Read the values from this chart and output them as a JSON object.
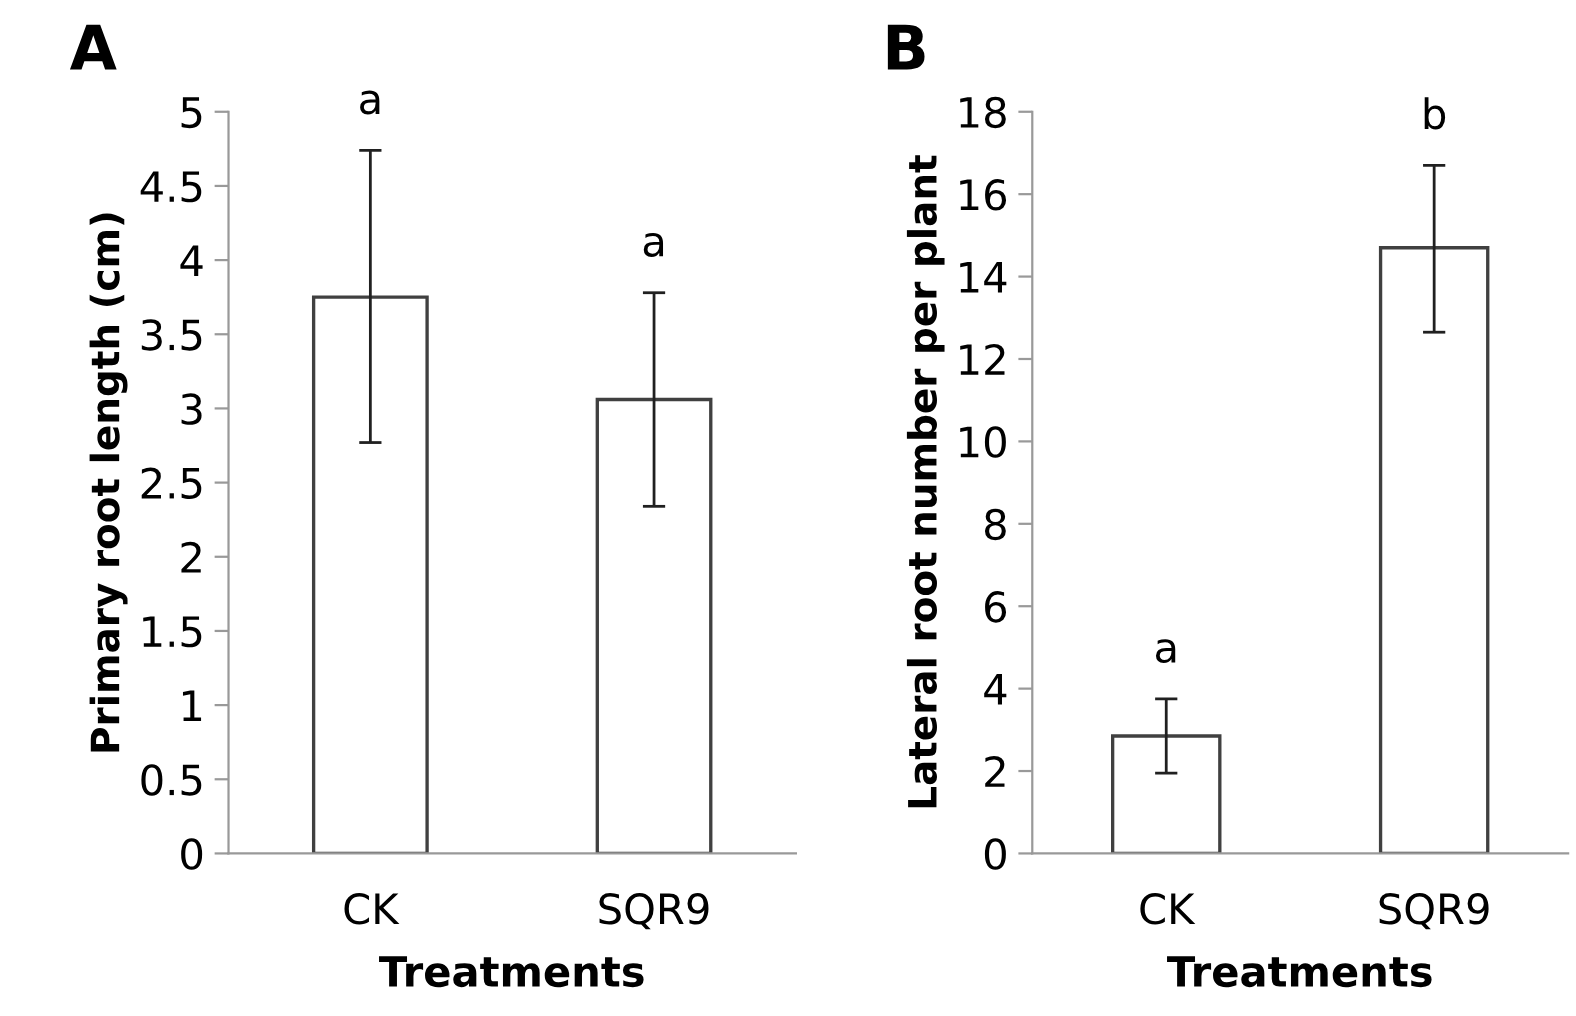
{
  "chart_data": [
    {
      "type": "bar",
      "title": "A",
      "xlabel": "Treatments",
      "ylabel": "Primary root length (cm)",
      "categories": [
        "CK",
        "SQR9"
      ],
      "values": [
        3.75,
        3.06
      ],
      "errors": [
        [
          2.77,
          4.74
        ],
        [
          2.34,
          3.78
        ]
      ],
      "color": "#ffffff",
      "ylim": [
        0,
        5
      ],
      "yticks": [
        0,
        0.5,
        1,
        1.5,
        2,
        2.5,
        3,
        3.5,
        4,
        4.5,
        5
      ],
      "grid": false,
      "legend": false,
      "annotations": [
        {
          "text": "a",
          "x": "CK",
          "y": 4.74
        },
        {
          "text": "a",
          "x": "SQR9",
          "y": 3.78
        }
      ]
    },
    {
      "type": "bar",
      "title": "B",
      "xlabel": "Treatments",
      "ylabel": "Lateral root number per plant",
      "categories": [
        "CK",
        "SQR9"
      ],
      "values": [
        2.85,
        14.7
      ],
      "errors": [
        [
          1.95,
          3.75
        ],
        [
          12.65,
          16.7
        ]
      ],
      "color": "#ffffff",
      "ylim": [
        0,
        18
      ],
      "yticks": [
        0,
        2,
        4,
        6,
        8,
        10,
        12,
        14,
        16,
        18
      ],
      "grid": false,
      "legend": false,
      "annotations": [
        {
          "text": "a",
          "x": "CK",
          "y": 3.75
        },
        {
          "text": "b",
          "x": "SQR9",
          "y": 16.7
        }
      ]
    }
  ]
}
